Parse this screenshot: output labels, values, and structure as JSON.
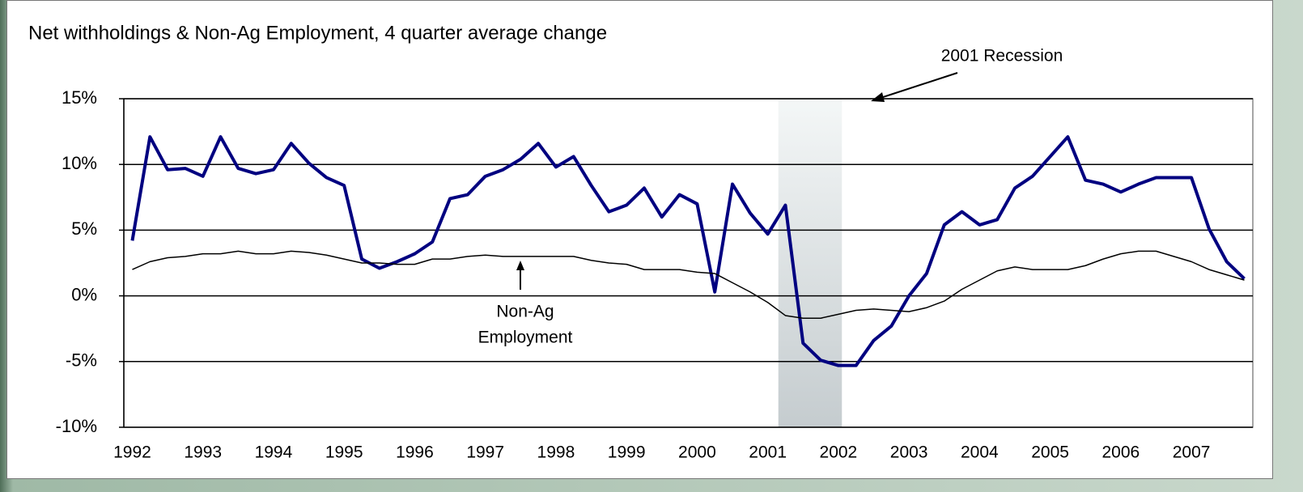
{
  "chart_data": {
    "type": "line",
    "title": "Net withholdings & Non-Ag Employment, 4 quarter average change",
    "x": [
      1992,
      1992.25,
      1992.5,
      1992.75,
      1993,
      1993.25,
      1993.5,
      1993.75,
      1994,
      1994.25,
      1994.5,
      1994.75,
      1995,
      1995.25,
      1995.5,
      1995.75,
      1996,
      1996.25,
      1996.5,
      1996.75,
      1997,
      1997.25,
      1997.5,
      1997.75,
      1998,
      1998.25,
      1998.5,
      1998.75,
      1999,
      1999.25,
      1999.5,
      1999.75,
      2000,
      2000.25,
      2000.5,
      2000.75,
      2001,
      2001.25,
      2001.5,
      2001.75,
      2002,
      2002.25,
      2002.5,
      2002.75,
      2003,
      2003.25,
      2003.5,
      2003.75,
      2004,
      2004.25,
      2004.5,
      2004.75,
      2005,
      2005.25,
      2005.5,
      2005.75,
      2006,
      2006.25,
      2006.5,
      2006.75,
      2007,
      2007.25,
      2007.5,
      2007.75
    ],
    "series": [
      {
        "color": "#000080",
        "width": 4,
        "values": [
          4.2,
          12.1,
          9.6,
          9.7,
          9.1,
          12.1,
          9.7,
          9.3,
          9.6,
          11.6,
          10.1,
          9.0,
          8.4,
          2.8,
          2.1,
          2.6,
          3.2,
          4.1,
          7.4,
          7.7,
          9.1,
          9.6,
          10.4,
          11.6,
          9.8,
          10.6,
          8.4,
          6.4,
          6.9,
          8.2,
          6.0,
          7.7,
          7.0,
          0.3,
          8.5,
          6.3,
          4.7,
          6.9,
          -3.6,
          -4.9,
          -5.3,
          -5.3,
          -3.4,
          -2.3,
          0.0,
          1.7,
          5.4,
          6.4,
          5.4,
          5.8,
          8.2,
          9.1,
          10.6,
          12.1,
          8.8,
          8.5,
          7.9,
          8.5,
          9.0,
          9.0,
          9.0,
          5.1,
          2.6,
          1.3
        ]
      },
      {
        "color": "#000000",
        "width": 1.5,
        "values": [
          2.0,
          2.6,
          2.9,
          3.0,
          3.2,
          3.2,
          3.4,
          3.2,
          3.2,
          3.4,
          3.3,
          3.1,
          2.8,
          2.5,
          2.5,
          2.4,
          2.4,
          2.8,
          2.8,
          3.0,
          3.1,
          3.0,
          3.0,
          3.0,
          3.0,
          3.0,
          2.7,
          2.5,
          2.4,
          2.0,
          2.0,
          2.0,
          1.8,
          1.7,
          1.0,
          0.3,
          -0.5,
          -1.5,
          -1.7,
          -1.7,
          -1.4,
          -1.1,
          -1.0,
          -1.1,
          -1.2,
          -0.9,
          -0.4,
          0.5,
          1.2,
          1.9,
          2.2,
          2.0,
          2.0,
          2.0,
          2.3,
          2.8,
          3.2,
          3.4,
          3.4,
          3.0,
          2.6,
          2.0,
          1.6,
          1.2
        ]
      }
    ],
    "xlim": [
      1991.88,
      2007.87
    ],
    "xticks": [
      1992,
      1993,
      1994,
      1995,
      1996,
      1997,
      1998,
      1999,
      2000,
      2001,
      2002,
      2003,
      2004,
      2005,
      2006,
      2007
    ],
    "ylim": [
      -10,
      15
    ],
    "yticks": [
      {
        "value": -10,
        "label": "-10%"
      },
      {
        "value": -5,
        "label": "-5%"
      },
      {
        "value": 0,
        "label": "0%"
      },
      {
        "value": 5,
        "label": "5%"
      },
      {
        "value": 10,
        "label": "10%"
      },
      {
        "value": 15,
        "label": "15%"
      }
    ],
    "grid": true,
    "recession": {
      "label": "2001 Recession",
      "start": 2001.15,
      "end": 2002.05
    },
    "employment_note": [
      "Non-Ag",
      "Employment"
    ]
  }
}
